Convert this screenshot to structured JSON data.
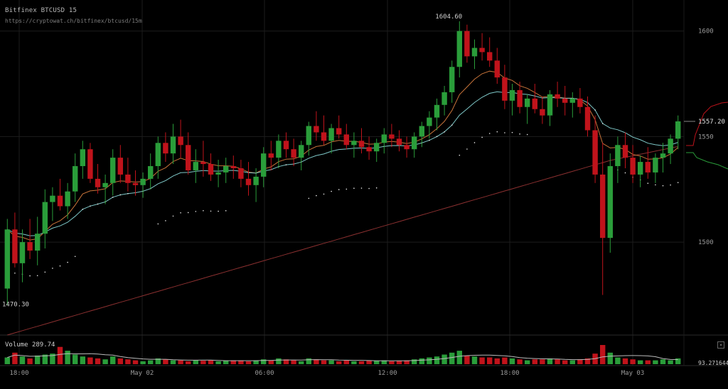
{
  "header": {
    "title": "Bitfinex BTCUSD 15",
    "url": "https://cryptowat.ch/bitfinex/btcusd/15m"
  },
  "volume_panel": {
    "label": "Volume",
    "value": "289.74",
    "axis_value": "93.271644",
    "close_symbol": "×"
  },
  "colors": {
    "up": "#2a9d3a",
    "down": "#c0131b",
    "ema_fast": "#c8743a",
    "ema_slow": "#7ec8c8",
    "sma_long": "#8b3030",
    "sar": "#e8e8e8",
    "grid": "#1c1c1c",
    "text": "#9a9a9a"
  },
  "chart_data": {
    "type": "candlestick",
    "title": "Bitfinex BTCUSD 15",
    "ylim": [
      1458,
      1612
    ],
    "yticks": [
      1500,
      1550,
      1600
    ],
    "y_labels": [
      "1500",
      "1550",
      "1600"
    ],
    "current_price": "1557.20",
    "annotations": {
      "high": "1604.60",
      "low": "1470.30"
    },
    "x_tick_labels": [
      "18:00",
      "May 02",
      "06:00",
      "12:00",
      "18:00",
      "May 03"
    ],
    "candles": [
      [
        1478,
        1511,
        1470.3,
        1506
      ],
      [
        1506,
        1514,
        1488,
        1490
      ],
      [
        1490,
        1506,
        1481,
        1500
      ],
      [
        1500,
        1511,
        1492,
        1496
      ],
      [
        1496,
        1512,
        1489,
        1504
      ],
      [
        1504,
        1525,
        1497,
        1519
      ],
      [
        1519,
        1526,
        1510,
        1522
      ],
      [
        1522,
        1530,
        1515,
        1517
      ],
      [
        1517,
        1528,
        1511,
        1524
      ],
      [
        1524,
        1542,
        1519,
        1536
      ],
      [
        1536,
        1548,
        1530,
        1544
      ],
      [
        1544,
        1547,
        1528,
        1530
      ],
      [
        1530,
        1537,
        1523,
        1526
      ],
      [
        1526,
        1532,
        1518,
        1528
      ],
      [
        1528,
        1544,
        1522,
        1540
      ],
      [
        1540,
        1546,
        1528,
        1532
      ],
      [
        1532,
        1540,
        1524,
        1528
      ],
      [
        1528,
        1534,
        1522,
        1527
      ],
      [
        1527,
        1533,
        1521,
        1530
      ],
      [
        1530,
        1542,
        1525,
        1536
      ],
      [
        1536,
        1550,
        1530,
        1547
      ],
      [
        1547,
        1552,
        1538,
        1542
      ],
      [
        1542,
        1556,
        1537,
        1550
      ],
      [
        1550,
        1558,
        1540,
        1546
      ],
      [
        1546,
        1552,
        1532,
        1534
      ],
      [
        1534,
        1544,
        1528,
        1538
      ],
      [
        1538,
        1548,
        1531,
        1537
      ],
      [
        1537,
        1542,
        1529,
        1532
      ],
      [
        1532,
        1539,
        1526,
        1533
      ],
      [
        1533,
        1540,
        1528,
        1536
      ],
      [
        1536,
        1541,
        1530,
        1535
      ],
      [
        1535,
        1539,
        1526,
        1530
      ],
      [
        1530,
        1538,
        1522,
        1527
      ],
      [
        1527,
        1535,
        1519,
        1531
      ],
      [
        1531,
        1545,
        1526,
        1542
      ],
      [
        1542,
        1548,
        1534,
        1540
      ],
      [
        1540,
        1551,
        1535,
        1548
      ],
      [
        1548,
        1552,
        1540,
        1544
      ],
      [
        1544,
        1549,
        1536,
        1540
      ],
      [
        1540,
        1548,
        1534,
        1546
      ],
      [
        1546,
        1557,
        1541,
        1555
      ],
      [
        1555,
        1562,
        1548,
        1552
      ],
      [
        1552,
        1560,
        1546,
        1548
      ],
      [
        1548,
        1556,
        1542,
        1554
      ],
      [
        1554,
        1560,
        1549,
        1551
      ],
      [
        1551,
        1556,
        1544,
        1546
      ],
      [
        1546,
        1552,
        1540,
        1548
      ],
      [
        1548,
        1554,
        1542,
        1545
      ],
      [
        1545,
        1550,
        1539,
        1543
      ],
      [
        1543,
        1549,
        1538,
        1547
      ],
      [
        1547,
        1554,
        1542,
        1551
      ],
      [
        1551,
        1556,
        1545,
        1549
      ],
      [
        1549,
        1553,
        1543,
        1546
      ],
      [
        1546,
        1550,
        1540,
        1544
      ],
      [
        1544,
        1552,
        1540,
        1550
      ],
      [
        1550,
        1557,
        1545,
        1555
      ],
      [
        1555,
        1562,
        1549,
        1559
      ],
      [
        1559,
        1568,
        1553,
        1565
      ],
      [
        1565,
        1574,
        1560,
        1571
      ],
      [
        1571,
        1586,
        1566,
        1583
      ],
      [
        1583,
        1604.6,
        1578,
        1600
      ],
      [
        1600,
        1603,
        1585,
        1588
      ],
      [
        1588,
        1596,
        1582,
        1592
      ],
      [
        1592,
        1599,
        1586,
        1590
      ],
      [
        1590,
        1597,
        1583,
        1586
      ],
      [
        1586,
        1592,
        1575,
        1578
      ],
      [
        1578,
        1584,
        1563,
        1567
      ],
      [
        1567,
        1575,
        1560,
        1572
      ],
      [
        1572,
        1576,
        1561,
        1564
      ],
      [
        1564,
        1570,
        1556,
        1568
      ],
      [
        1568,
        1575,
        1561,
        1563
      ],
      [
        1563,
        1569,
        1556,
        1560
      ],
      [
        1560,
        1572,
        1555,
        1570
      ],
      [
        1570,
        1576,
        1564,
        1568
      ],
      [
        1568,
        1574,
        1560,
        1566
      ],
      [
        1566,
        1571,
        1559,
        1568
      ],
      [
        1568,
        1573,
        1561,
        1564
      ],
      [
        1564,
        1569,
        1550,
        1553
      ],
      [
        1553,
        1560,
        1528,
        1532
      ],
      [
        1532,
        1547,
        1475,
        1502
      ],
      [
        1502,
        1542,
        1495,
        1536
      ],
      [
        1536,
        1550,
        1528,
        1546
      ],
      [
        1546,
        1552,
        1535,
        1540
      ],
      [
        1540,
        1546,
        1528,
        1532
      ],
      [
        1532,
        1541,
        1526,
        1538
      ],
      [
        1538,
        1545,
        1530,
        1533
      ],
      [
        1533,
        1542,
        1528,
        1540
      ],
      [
        1540,
        1547,
        1533,
        1542
      ],
      [
        1542,
        1551,
        1537,
        1549
      ],
      [
        1549,
        1560,
        1544,
        1557.2
      ]
    ],
    "volume": [
      0.35,
      0.6,
      0.4,
      0.3,
      0.45,
      0.5,
      0.55,
      0.9,
      0.7,
      0.5,
      0.4,
      0.35,
      0.3,
      0.25,
      0.4,
      0.3,
      0.25,
      0.2,
      0.15,
      0.2,
      0.3,
      0.25,
      0.2,
      0.2,
      0.15,
      0.2,
      0.18,
      0.2,
      0.15,
      0.18,
      0.2,
      0.2,
      0.15,
      0.2,
      0.25,
      0.2,
      0.3,
      0.25,
      0.2,
      0.15,
      0.3,
      0.25,
      0.2,
      0.2,
      0.15,
      0.2,
      0.15,
      0.15,
      0.2,
      0.18,
      0.2,
      0.15,
      0.18,
      0.2,
      0.25,
      0.3,
      0.35,
      0.4,
      0.5,
      0.6,
      0.7,
      0.45,
      0.4,
      0.35,
      0.35,
      0.3,
      0.35,
      0.3,
      0.25,
      0.2,
      0.25,
      0.25,
      0.3,
      0.25,
      0.2,
      0.2,
      0.25,
      0.3,
      0.55,
      1.0,
      0.6,
      0.35,
      0.3,
      0.25,
      0.2,
      0.2,
      0.2,
      0.25,
      0.2,
      0.3
    ]
  }
}
